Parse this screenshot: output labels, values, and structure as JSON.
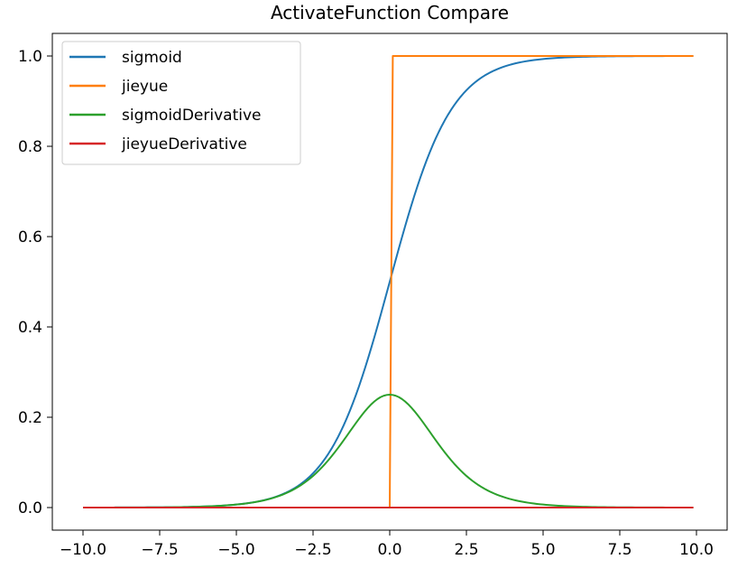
{
  "chart_data": {
    "type": "line",
    "title": "ActivateFunction Compare",
    "xlabel": "",
    "ylabel": "",
    "xlim": [
      -11.0,
      11.0
    ],
    "ylim": [
      -0.05,
      1.05
    ],
    "x_ticks": [
      -10.0,
      -7.5,
      -5.0,
      -2.5,
      0.0,
      2.5,
      5.0,
      7.5,
      10.0
    ],
    "x_tick_labels": [
      "−10.0",
      "−7.5",
      "−5.0",
      "−2.5",
      "0.0",
      "2.5",
      "5.0",
      "7.5",
      "10.0"
    ],
    "y_ticks": [
      0.0,
      0.2,
      0.4,
      0.6,
      0.8,
      1.0
    ],
    "y_tick_labels": [
      "0.0",
      "0.2",
      "0.4",
      "0.6",
      "0.8",
      "1.0"
    ],
    "grid": false,
    "legend_position": "top-left",
    "x_range": [
      -10.0,
      9.9
    ],
    "x_step": 0.1,
    "series": [
      {
        "name": "sigmoid",
        "color": "#1f77b4",
        "function": "1 / (1 + exp(-x))"
      },
      {
        "name": "jieyue",
        "color": "#ff7f0e",
        "function": "x > 0 ? 1 : 0"
      },
      {
        "name": "sigmoidDerivative",
        "color": "#2ca02c",
        "function": "sigmoid(x) * (1 - sigmoid(x))"
      },
      {
        "name": "jieyueDerivative",
        "color": "#d62728",
        "function": "0"
      }
    ]
  }
}
